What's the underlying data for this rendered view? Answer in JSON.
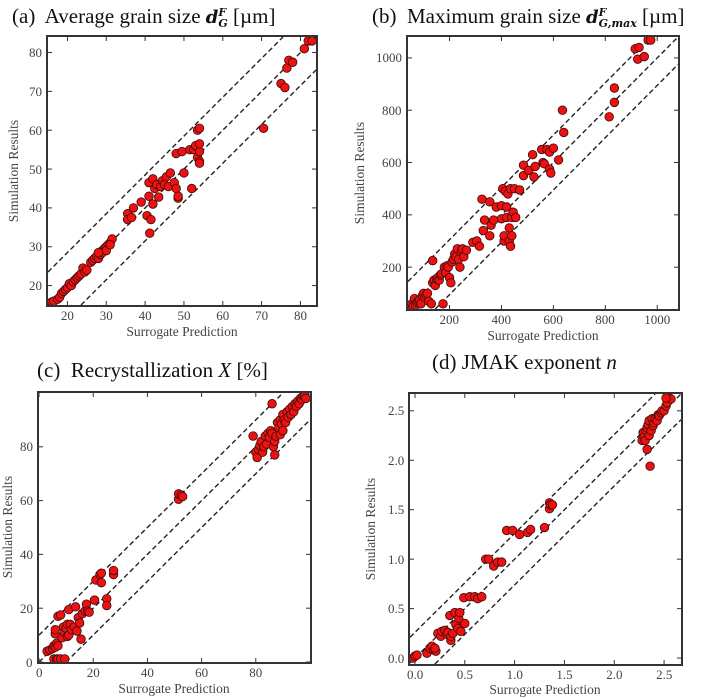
{
  "chart_data": [
    {
      "type": "scatter",
      "panel": "(a)",
      "title": "Average grain size",
      "symbol": "d",
      "sub": "G",
      "sup": "F",
      "unit": "[µm]",
      "xlabel": "Surrogate Prediction",
      "ylabel": "Simulation Results",
      "xlim": [
        15,
        84
      ],
      "ylim": [
        15,
        84
      ],
      "xticks": [
        20,
        30,
        40,
        50,
        60,
        70,
        80
      ],
      "yticks": [
        20,
        30,
        40,
        50,
        60,
        70,
        80
      ],
      "band_offset": 8.5,
      "point_color": "#ee1111",
      "points": [
        [
          16,
          15.5
        ],
        [
          16.5,
          16
        ],
        [
          17.5,
          16.5
        ],
        [
          18,
          17
        ],
        [
          18.5,
          18
        ],
        [
          19,
          18.5
        ],
        [
          19.5,
          19
        ],
        [
          20,
          19.5
        ],
        [
          20.5,
          20.5
        ],
        [
          21,
          20
        ],
        [
          21.5,
          21
        ],
        [
          22,
          21.5
        ],
        [
          22.5,
          22
        ],
        [
          23,
          22.5
        ],
        [
          23.5,
          23
        ],
        [
          24,
          24.5
        ],
        [
          24.5,
          23.5
        ],
        [
          25,
          24
        ],
        [
          26,
          26
        ],
        [
          26.5,
          26.5
        ],
        [
          27,
          27
        ],
        [
          27.5,
          27.5
        ],
        [
          28,
          27
        ],
        [
          28.5,
          28
        ],
        [
          29,
          29
        ],
        [
          29.5,
          29.5
        ],
        [
          30,
          30
        ],
        [
          30.5,
          30.5
        ],
        [
          31,
          31
        ],
        [
          31.5,
          32
        ],
        [
          29,
          28.5
        ],
        [
          30,
          29
        ],
        [
          31,
          30.5
        ],
        [
          28,
          28.5
        ],
        [
          35.5,
          38.5
        ],
        [
          35.5,
          37
        ],
        [
          36.5,
          37.5
        ],
        [
          37,
          40
        ],
        [
          39,
          41.5
        ],
        [
          40.5,
          38
        ],
        [
          41,
          46.5
        ],
        [
          41.5,
          37
        ],
        [
          41,
          43
        ],
        [
          41.2,
          33.5
        ],
        [
          42,
          41
        ],
        [
          42,
          47.5
        ],
        [
          42.5,
          45
        ],
        [
          43,
          46
        ],
        [
          43.5,
          42.8
        ],
        [
          44,
          45.5
        ],
        [
          44.5,
          47
        ],
        [
          45,
          46
        ],
        [
          45.5,
          48
        ],
        [
          46,
          45.5
        ],
        [
          46.5,
          49
        ],
        [
          47.5,
          46.5
        ],
        [
          48,
          54
        ],
        [
          48,
          45
        ],
        [
          48.5,
          42.5
        ],
        [
          48.5,
          43
        ],
        [
          49.5,
          54.5
        ],
        [
          50,
          49
        ],
        [
          51.5,
          55
        ],
        [
          52,
          45
        ],
        [
          52.5,
          55
        ],
        [
          53,
          56
        ],
        [
          53.5,
          53
        ],
        [
          53.5,
          60
        ],
        [
          54,
          60.5
        ],
        [
          54,
          54.5
        ],
        [
          54,
          52
        ],
        [
          54,
          51.5
        ],
        [
          54,
          56.5
        ],
        [
          70.5,
          60.5
        ],
        [
          75,
          72
        ],
        [
          76,
          71
        ],
        [
          76.5,
          76
        ],
        [
          77,
          78
        ],
        [
          78,
          77.5
        ],
        [
          81,
          81
        ],
        [
          82,
          83
        ],
        [
          83,
          83
        ]
      ]
    },
    {
      "type": "scatter",
      "panel": "(b)",
      "title": "Maximum grain size",
      "symbol": "d",
      "sub": "G,max",
      "sup": "F",
      "unit": "[µm]",
      "xlabel": "Surrogate Prediction",
      "ylabel": "Simulation Results",
      "xlim": [
        40,
        1080
      ],
      "ylim": [
        40,
        1080
      ],
      "xticks": [
        200,
        400,
        600,
        800,
        1000
      ],
      "yticks": [
        200,
        400,
        600,
        800,
        1000
      ],
      "band_offset": 105,
      "point_color": "#ee1111",
      "points": [
        [
          50,
          50
        ],
        [
          55,
          60
        ],
        [
          60,
          45
        ],
        [
          65,
          80
        ],
        [
          70,
          55
        ],
        [
          75,
          65
        ],
        [
          80,
          70
        ],
        [
          85,
          75
        ],
        [
          90,
          60
        ],
        [
          95,
          90
        ],
        [
          100,
          100
        ],
        [
          105,
          85
        ],
        [
          110,
          95
        ],
        [
          115,
          100
        ],
        [
          120,
          70
        ],
        [
          130,
          60
        ],
        [
          135,
          225
        ],
        [
          135,
          140
        ],
        [
          140,
          150
        ],
        [
          145,
          130
        ],
        [
          150,
          155
        ],
        [
          155,
          160
        ],
        [
          160,
          150
        ],
        [
          165,
          170
        ],
        [
          170,
          175
        ],
        [
          175,
          60
        ],
        [
          180,
          200
        ],
        [
          185,
          180
        ],
        [
          190,
          205
        ],
        [
          195,
          200
        ],
        [
          200,
          160
        ],
        [
          205,
          140
        ],
        [
          210,
          220
        ],
        [
          215,
          230
        ],
        [
          220,
          250
        ],
        [
          225,
          240
        ],
        [
          230,
          270
        ],
        [
          235,
          230
        ],
        [
          240,
          200
        ],
        [
          245,
          260
        ],
        [
          250,
          270
        ],
        [
          255,
          240
        ],
        [
          265,
          265
        ],
        [
          290,
          295
        ],
        [
          305,
          300
        ],
        [
          315,
          280
        ],
        [
          325,
          460
        ],
        [
          330,
          340
        ],
        [
          335,
          380
        ],
        [
          355,
          320
        ],
        [
          355,
          450
        ],
        [
          360,
          360
        ],
        [
          370,
          380
        ],
        [
          380,
          430
        ],
        [
          400,
          385
        ],
        [
          400,
          435
        ],
        [
          405,
          500
        ],
        [
          410,
          300
        ],
        [
          410,
          320
        ],
        [
          415,
          490
        ],
        [
          420,
          390
        ],
        [
          420,
          430
        ],
        [
          425,
          480
        ],
        [
          430,
          300
        ],
        [
          430,
          350
        ],
        [
          435,
          500
        ],
        [
          435,
          280
        ],
        [
          440,
          320
        ],
        [
          440,
          390
        ],
        [
          445,
          410
        ],
        [
          450,
          500
        ],
        [
          455,
          390
        ],
        [
          470,
          495
        ],
        [
          485,
          550
        ],
        [
          485,
          590
        ],
        [
          505,
          570
        ],
        [
          520,
          630
        ],
        [
          525,
          545
        ],
        [
          530,
          585
        ],
        [
          555,
          650
        ],
        [
          560,
          600
        ],
        [
          565,
          595
        ],
        [
          575,
          650
        ],
        [
          585,
          640
        ],
        [
          585,
          575
        ],
        [
          590,
          560
        ],
        [
          600,
          655
        ],
        [
          620,
          610
        ],
        [
          635,
          800
        ],
        [
          640,
          715
        ],
        [
          815,
          775
        ],
        [
          835,
          830
        ],
        [
          835,
          885
        ],
        [
          915,
          1035
        ],
        [
          925,
          995
        ],
        [
          930,
          1040
        ],
        [
          950,
          1005
        ],
        [
          965,
          1080
        ],
        [
          975,
          1075
        ]
      ]
    },
    {
      "type": "scatter",
      "panel": "(c)",
      "title": "Recrystallization",
      "symbol": "X",
      "sub": "",
      "sup": "",
      "unit": "[%]",
      "xlabel": "Surrogate Prediction",
      "ylabel": "Simulation Results",
      "xlim": [
        0,
        100
      ],
      "ylim": [
        0,
        100
      ],
      "xticks": [
        0,
        20,
        40,
        60,
        80
      ],
      "yticks": [
        0,
        20,
        40,
        60,
        80
      ],
      "band_offset": 10,
      "point_color": "#ee1111",
      "points": [
        [
          3,
          4
        ],
        [
          4,
          4.5
        ],
        [
          5,
          5
        ],
        [
          5.5,
          6
        ],
        [
          6,
          5.5
        ],
        [
          6.5,
          7
        ],
        [
          6,
          10.5
        ],
        [
          6,
          12
        ],
        [
          5.5,
          0
        ],
        [
          6.5,
          0
        ],
        [
          7,
          0
        ],
        [
          8,
          0
        ],
        [
          9.5,
          0
        ],
        [
          7,
          17
        ],
        [
          8,
          17.5
        ],
        [
          7,
          6
        ],
        [
          8.5,
          9
        ],
        [
          9,
          13
        ],
        [
          9.5,
          11
        ],
        [
          10,
          12.5
        ],
        [
          10.5,
          14
        ],
        [
          10.5,
          9.5
        ],
        [
          11,
          10
        ],
        [
          11,
          19.5
        ],
        [
          11.5,
          14
        ],
        [
          12,
          12
        ],
        [
          13,
          13
        ],
        [
          13.5,
          20.5
        ],
        [
          14,
          11.5
        ],
        [
          14.5,
          16.5
        ],
        [
          15,
          14.5
        ],
        [
          15.5,
          8.5
        ],
        [
          16,
          18
        ],
        [
          17,
          19
        ],
        [
          17.5,
          21.5
        ],
        [
          18,
          19
        ],
        [
          18.5,
          18.5
        ],
        [
          20.5,
          23
        ],
        [
          21,
          30.5
        ],
        [
          22.5,
          32.5
        ],
        [
          23,
          29.5
        ],
        [
          23,
          33
        ],
        [
          25,
          23.5
        ],
        [
          25,
          21
        ],
        [
          27.5,
          32.5
        ],
        [
          27.5,
          34
        ],
        [
          51.5,
          60.5
        ],
        [
          51.5,
          62.5
        ],
        [
          52.5,
          62
        ],
        [
          53,
          61.5
        ],
        [
          79,
          84
        ],
        [
          80,
          78
        ],
        [
          80.5,
          76
        ],
        [
          81,
          79
        ],
        [
          81.5,
          80.5
        ],
        [
          82,
          82
        ],
        [
          82.5,
          78
        ],
        [
          83,
          80
        ],
        [
          83.5,
          84
        ],
        [
          84,
          81
        ],
        [
          84.5,
          85
        ],
        [
          85,
          83.5
        ],
        [
          85.5,
          86
        ],
        [
          86,
          85
        ],
        [
          86,
          96
        ],
        [
          86.5,
          80
        ],
        [
          87,
          82
        ],
        [
          87,
          77
        ],
        [
          87.5,
          84
        ],
        [
          88,
          89
        ],
        [
          88.5,
          87
        ],
        [
          89,
          90
        ],
        [
          89,
          84.5
        ],
        [
          89.5,
          88.5
        ],
        [
          90,
          92
        ],
        [
          90,
          86
        ],
        [
          90.5,
          90
        ],
        [
          91,
          89
        ],
        [
          91.5,
          93
        ],
        [
          92,
          91
        ],
        [
          92.5,
          94
        ],
        [
          93,
          92
        ],
        [
          93.5,
          95
        ],
        [
          94,
          93
        ],
        [
          94.5,
          96
        ],
        [
          95,
          95
        ],
        [
          95.5,
          97
        ],
        [
          96,
          96
        ],
        [
          96.5,
          98
        ],
        [
          97,
          97.5
        ],
        [
          97.5,
          99
        ],
        [
          98,
          99
        ],
        [
          98.5,
          98
        ]
      ]
    },
    {
      "type": "scatter",
      "panel": "(d)",
      "title": "JMAK exponent",
      "symbol": "n",
      "sub": "",
      "sup": "",
      "unit": "",
      "xlabel": "Surrogate Prediction",
      "ylabel": "Simulation Results",
      "xlim": [
        -0.05,
        2.67
      ],
      "ylim": [
        -0.06,
        2.67
      ],
      "xticks": [
        "0.0",
        "0.5",
        "1.0",
        "1.5",
        "2.0",
        "2.5"
      ],
      "yticks": [
        "0.0",
        "0.5",
        "1.0",
        "1.5",
        "2.0",
        "2.5"
      ],
      "band_offset": 0.26,
      "point_color": "#ee1111",
      "points": [
        [
          -0.05,
          0.0
        ],
        [
          0.0,
          0.02
        ],
        [
          0.02,
          0.03
        ],
        [
          0.12,
          0.05
        ],
        [
          0.15,
          0.1
        ],
        [
          0.17,
          0.12
        ],
        [
          0.19,
          0.08
        ],
        [
          0.21,
          0.07
        ],
        [
          0.2,
          0.1
        ],
        [
          0.23,
          0.25
        ],
        [
          0.26,
          0.22
        ],
        [
          0.27,
          0.27
        ],
        [
          0.3,
          0.28
        ],
        [
          0.32,
          0.24
        ],
        [
          0.33,
          0.26
        ],
        [
          0.35,
          0.43
        ],
        [
          0.36,
          0.18
        ],
        [
          0.36,
          0.22
        ],
        [
          0.38,
          0.25
        ],
        [
          0.4,
          0.46
        ],
        [
          0.41,
          0.34
        ],
        [
          0.43,
          0.3
        ],
        [
          0.44,
          0.4
        ],
        [
          0.45,
          0.46
        ],
        [
          0.46,
          0.27
        ],
        [
          0.49,
          0.61
        ],
        [
          0.5,
          0.35
        ],
        [
          0.55,
          0.62
        ],
        [
          0.6,
          0.62
        ],
        [
          0.63,
          0.6
        ],
        [
          0.67,
          0.62
        ],
        [
          0.71,
          1.0
        ],
        [
          0.74,
          1.0
        ],
        [
          0.79,
          0.93
        ],
        [
          0.83,
          0.97
        ],
        [
          0.87,
          0.97
        ],
        [
          0.92,
          1.29
        ],
        [
          0.98,
          1.29
        ],
        [
          1.05,
          1.25
        ],
        [
          1.13,
          1.27
        ],
        [
          1.16,
          1.3
        ],
        [
          1.3,
          1.32
        ],
        [
          1.35,
          1.51
        ],
        [
          1.35,
          1.57
        ],
        [
          1.36,
          1.55
        ],
        [
          1.38,
          1.55
        ],
        [
          2.28,
          2.2
        ],
        [
          2.29,
          2.28
        ],
        [
          2.3,
          2.24
        ],
        [
          2.31,
          2.2
        ],
        [
          2.32,
          2.3
        ],
        [
          2.33,
          2.33
        ],
        [
          2.33,
          2.11
        ],
        [
          2.34,
          2.36
        ],
        [
          2.35,
          2.25
        ],
        [
          2.35,
          2.4
        ],
        [
          2.36,
          1.94
        ],
        [
          2.37,
          2.3
        ],
        [
          2.38,
          2.42
        ],
        [
          2.39,
          2.35
        ],
        [
          2.4,
          2.38
        ],
        [
          2.41,
          2.42
        ],
        [
          2.43,
          2.4
        ],
        [
          2.44,
          2.46
        ],
        [
          2.45,
          2.45
        ],
        [
          2.47,
          2.48
        ],
        [
          2.48,
          2.5
        ],
        [
          2.5,
          2.5
        ],
        [
          2.52,
          2.55
        ],
        [
          2.53,
          2.58
        ],
        [
          2.55,
          2.63
        ],
        [
          2.57,
          2.62
        ],
        [
          2.52,
          2.63
        ]
      ]
    }
  ]
}
